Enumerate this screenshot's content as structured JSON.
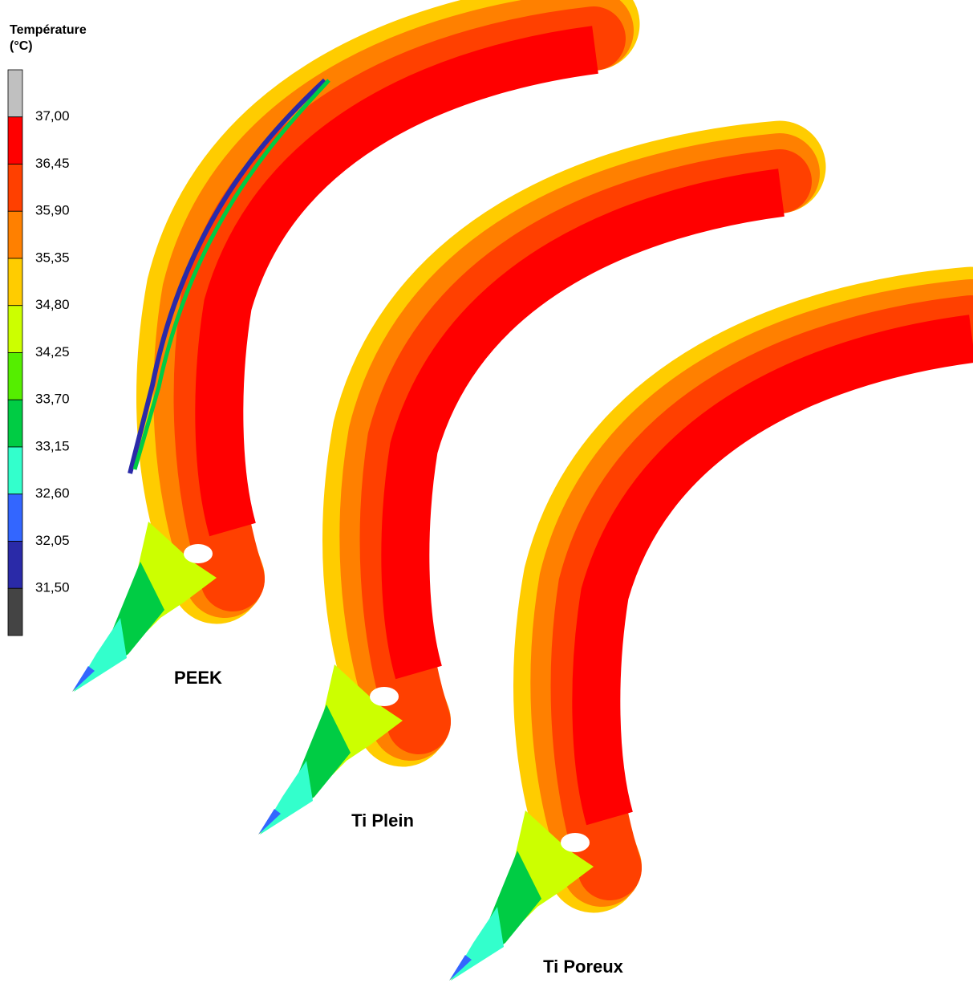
{
  "legend": {
    "title": [
      "Température",
      "(°C)"
    ],
    "colors": [
      "#c0c0c0",
      "#ff0000",
      "#ff4000",
      "#ff8000",
      "#ffcc00",
      "#ccff00",
      "#55ee00",
      "#00cc44",
      "#33ffcc",
      "#3366ff",
      "#2a2aa8",
      "#444444"
    ],
    "levels": [
      "37,00",
      "36,45",
      "35,90",
      "35,35",
      "34,80",
      "34,25",
      "33,70",
      "33,15",
      "32,60",
      "32,05",
      "31,50"
    ]
  },
  "specimens": [
    {
      "label": "PEEK"
    },
    {
      "label": "Ti Plein"
    },
    {
      "label": "Ti Poreux"
    }
  ]
}
